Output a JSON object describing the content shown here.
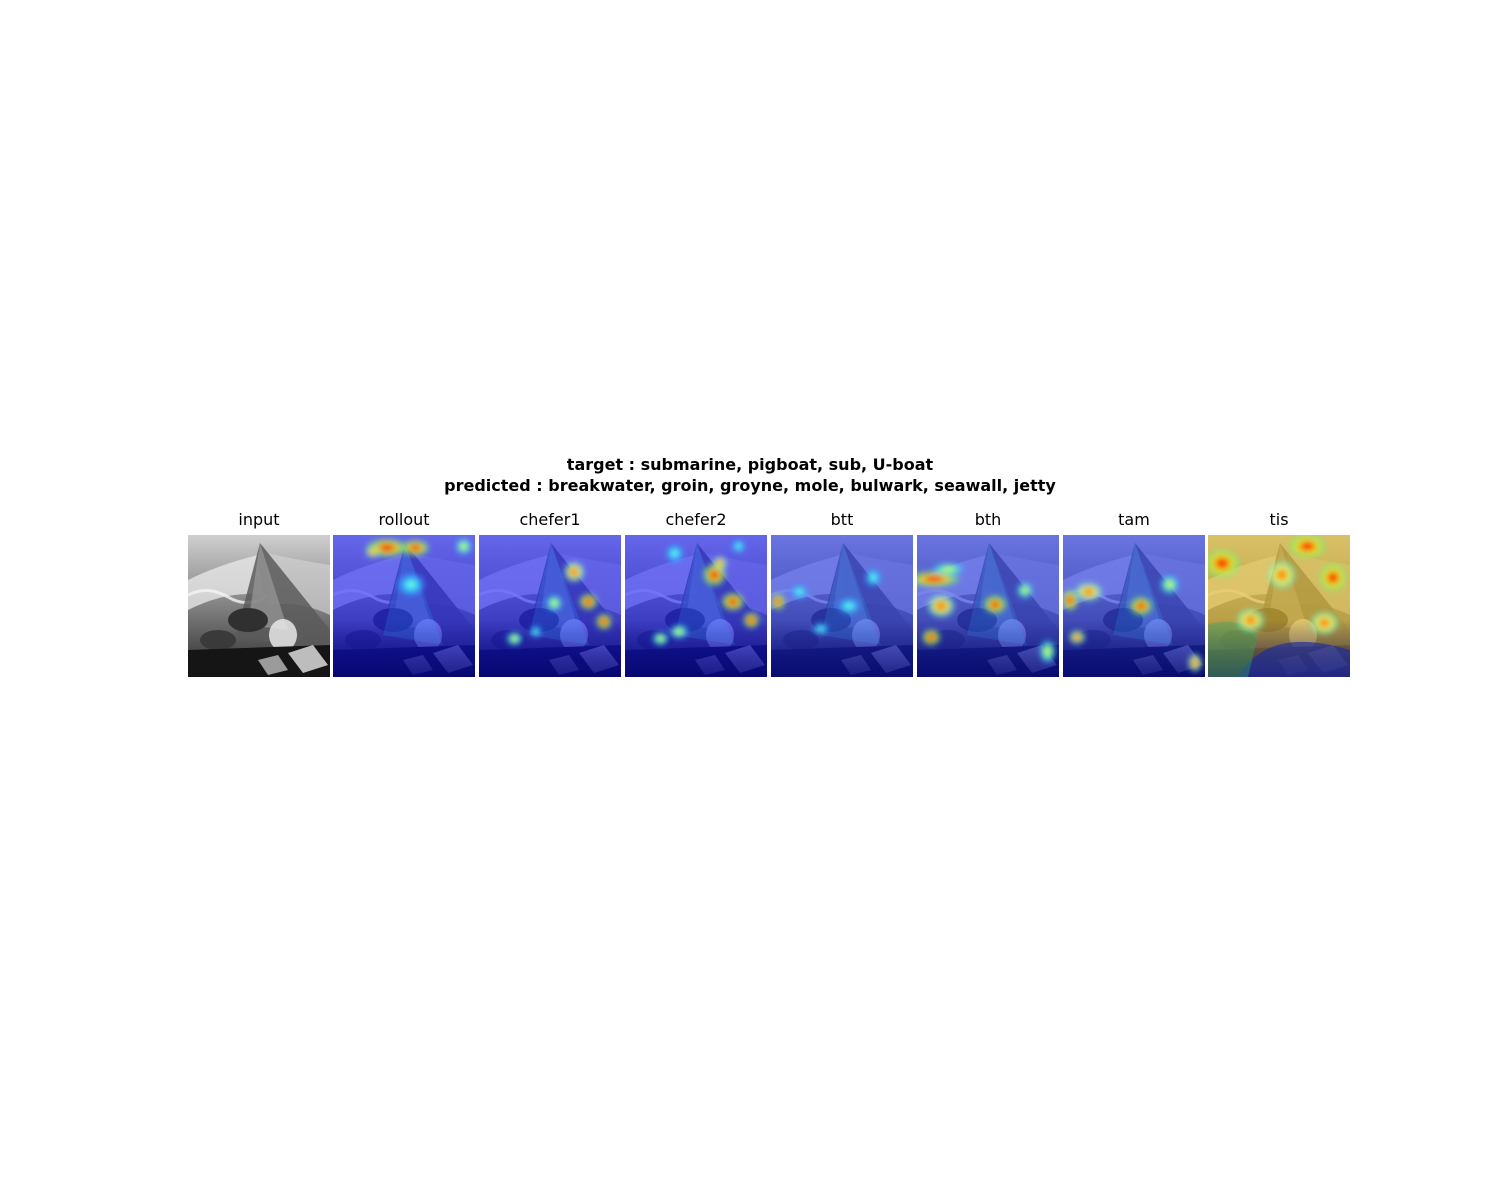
{
  "figure": {
    "title_lines": [
      "target : submarine, pigboat, sub, U-boat",
      "predicted : breakwater, groin, groyne, mole, bulwark, seawall, jetty"
    ],
    "panels": [
      {
        "label": "input",
        "kind": "photo"
      },
      {
        "label": "rollout",
        "kind": "heatmap",
        "overlay": "deep-blue",
        "hotspots": [
          {
            "x": 0.38,
            "y": 0.09,
            "w": 0.18,
            "h": 0.08,
            "heat": 0.9
          },
          {
            "x": 0.58,
            "y": 0.09,
            "w": 0.12,
            "h": 0.07,
            "heat": 1.0
          },
          {
            "x": 0.92,
            "y": 0.08,
            "w": 0.07,
            "h": 0.07,
            "heat": 0.5
          },
          {
            "x": 0.28,
            "y": 0.12,
            "w": 0.06,
            "h": 0.05,
            "heat": 0.7
          },
          {
            "x": 0.55,
            "y": 0.35,
            "w": 0.12,
            "h": 0.1,
            "heat": 0.2
          }
        ]
      },
      {
        "label": "chefer1",
        "kind": "heatmap",
        "overlay": "deep-blue",
        "hotspots": [
          {
            "x": 0.67,
            "y": 0.26,
            "w": 0.09,
            "h": 0.09,
            "heat": 0.8
          },
          {
            "x": 0.77,
            "y": 0.47,
            "w": 0.08,
            "h": 0.07,
            "heat": 0.9
          },
          {
            "x": 0.88,
            "y": 0.61,
            "w": 0.07,
            "h": 0.07,
            "heat": 1.0
          },
          {
            "x": 0.53,
            "y": 0.48,
            "w": 0.07,
            "h": 0.07,
            "heat": 0.5
          },
          {
            "x": 0.25,
            "y": 0.73,
            "w": 0.07,
            "h": 0.06,
            "heat": 0.5
          },
          {
            "x": 0.4,
            "y": 0.68,
            "w": 0.05,
            "h": 0.05,
            "heat": 0.4
          }
        ]
      },
      {
        "label": "chefer2",
        "kind": "heatmap",
        "overlay": "deep-blue",
        "hotspots": [
          {
            "x": 0.63,
            "y": 0.28,
            "w": 0.1,
            "h": 0.1,
            "heat": 0.9
          },
          {
            "x": 0.67,
            "y": 0.2,
            "w": 0.06,
            "h": 0.06,
            "heat": 0.8
          },
          {
            "x": 0.76,
            "y": 0.47,
            "w": 0.1,
            "h": 0.08,
            "heat": 1.0
          },
          {
            "x": 0.89,
            "y": 0.6,
            "w": 0.07,
            "h": 0.07,
            "heat": 0.9
          },
          {
            "x": 0.35,
            "y": 0.13,
            "w": 0.08,
            "h": 0.08,
            "heat": 0.4
          },
          {
            "x": 0.8,
            "y": 0.08,
            "w": 0.06,
            "h": 0.06,
            "heat": 0.4
          },
          {
            "x": 0.38,
            "y": 0.68,
            "w": 0.08,
            "h": 0.06,
            "heat": 0.5
          },
          {
            "x": 0.25,
            "y": 0.73,
            "w": 0.07,
            "h": 0.06,
            "heat": 0.5
          }
        ]
      },
      {
        "label": "btt",
        "kind": "heatmap",
        "overlay": "medium-blue",
        "hotspots": [
          {
            "x": 0.05,
            "y": 0.47,
            "w": 0.06,
            "h": 0.07,
            "heat": 0.95
          },
          {
            "x": 0.2,
            "y": 0.4,
            "w": 0.08,
            "h": 0.06,
            "heat": 0.3
          },
          {
            "x": 0.55,
            "y": 0.5,
            "w": 0.1,
            "h": 0.07,
            "heat": 0.4
          },
          {
            "x": 0.72,
            "y": 0.3,
            "w": 0.07,
            "h": 0.08,
            "heat": 0.3
          },
          {
            "x": 0.35,
            "y": 0.66,
            "w": 0.07,
            "h": 0.05,
            "heat": 0.4
          }
        ]
      },
      {
        "label": "bth",
        "kind": "heatmap",
        "overlay": "medium-blue",
        "hotspots": [
          {
            "x": 0.12,
            "y": 0.31,
            "w": 0.22,
            "h": 0.07,
            "heat": 0.9
          },
          {
            "x": 0.22,
            "y": 0.24,
            "w": 0.14,
            "h": 0.05,
            "heat": 0.6
          },
          {
            "x": 0.17,
            "y": 0.5,
            "w": 0.12,
            "h": 0.1,
            "heat": 0.7
          },
          {
            "x": 0.55,
            "y": 0.49,
            "w": 0.1,
            "h": 0.08,
            "heat": 0.9
          },
          {
            "x": 0.76,
            "y": 0.39,
            "w": 0.07,
            "h": 0.07,
            "heat": 0.6
          },
          {
            "x": 0.1,
            "y": 0.72,
            "w": 0.08,
            "h": 0.07,
            "heat": 0.9
          },
          {
            "x": 0.92,
            "y": 0.82,
            "w": 0.07,
            "h": 0.1,
            "heat": 0.6
          }
        ]
      },
      {
        "label": "tam",
        "kind": "heatmap",
        "overlay": "medium-blue",
        "hotspots": [
          {
            "x": 0.05,
            "y": 0.46,
            "w": 0.07,
            "h": 0.09,
            "heat": 1.0
          },
          {
            "x": 0.18,
            "y": 0.4,
            "w": 0.12,
            "h": 0.08,
            "heat": 0.7
          },
          {
            "x": 0.55,
            "y": 0.5,
            "w": 0.1,
            "h": 0.08,
            "heat": 0.95
          },
          {
            "x": 0.75,
            "y": 0.35,
            "w": 0.08,
            "h": 0.08,
            "heat": 0.6
          },
          {
            "x": 0.1,
            "y": 0.72,
            "w": 0.07,
            "h": 0.06,
            "heat": 0.8
          },
          {
            "x": 0.93,
            "y": 0.9,
            "w": 0.06,
            "h": 0.08,
            "heat": 0.7
          }
        ]
      },
      {
        "label": "tis",
        "kind": "heatmap",
        "overlay": "warm",
        "hotspots": [
          {
            "x": 0.7,
            "y": 0.08,
            "w": 0.16,
            "h": 0.1,
            "heat": 1.0
          },
          {
            "x": 0.1,
            "y": 0.2,
            "w": 0.15,
            "h": 0.12,
            "heat": 0.95
          },
          {
            "x": 0.88,
            "y": 0.3,
            "w": 0.12,
            "h": 0.12,
            "heat": 0.95
          },
          {
            "x": 0.52,
            "y": 0.28,
            "w": 0.12,
            "h": 0.12,
            "heat": 0.85
          },
          {
            "x": 0.3,
            "y": 0.6,
            "w": 0.12,
            "h": 0.1,
            "heat": 0.85
          },
          {
            "x": 0.82,
            "y": 0.62,
            "w": 0.12,
            "h": 0.1,
            "heat": 0.8
          }
        ]
      }
    ]
  }
}
